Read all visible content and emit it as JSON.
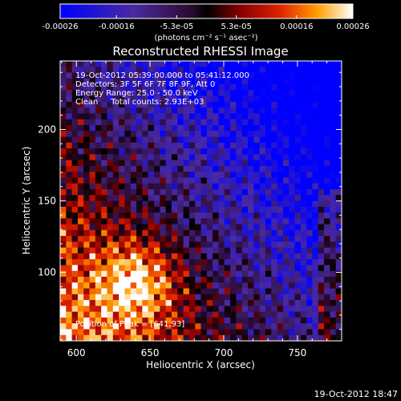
{
  "chart_data": {
    "type": "heatmap",
    "title": "Reconstructed RHESSI Image",
    "xlabel": "Heliocentric X (arcsec)",
    "ylabel": "Heliocentric Y (arcsec)",
    "xlim": [
      589,
      780
    ],
    "ylim": [
      52,
      248
    ],
    "x_ticks": [
      "600",
      "650",
      "700",
      "750"
    ],
    "y_ticks": [
      "100",
      "150",
      "200"
    ],
    "colorbar": {
      "ticks": [
        "-0.00026",
        "-0.00016",
        "-5.3e-05",
        "5.3e-05",
        "0.00016",
        "0.00026"
      ],
      "unit": "(photons cm⁻² s⁻¹ asec⁻²)",
      "range": [
        -0.00026,
        0.00026
      ]
    },
    "annotations": [
      "19-Oct-2012 05:39:00.000 to 05:41:12.000",
      "Detectors: 3F 5F 6F 7F 8F 9F, Att 0",
      "Energy Range: 25.0 - 50.0 keV",
      "Clean     Total counts: 2.93E+03"
    ],
    "peak_label": "Position of Peak = [641,93]",
    "peak": [
      641,
      93
    ]
  },
  "timestamp": "19-Oct-2012 18:47"
}
